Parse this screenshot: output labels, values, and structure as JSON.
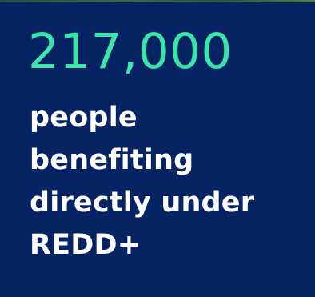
{
  "stat": {
    "value": "217,000",
    "caption_lines": [
      "people",
      "benefiting",
      "directly under",
      "REDD+"
    ]
  },
  "colors": {
    "background": "#062463",
    "value": "#39e5a9",
    "caption": "#ffffff"
  }
}
